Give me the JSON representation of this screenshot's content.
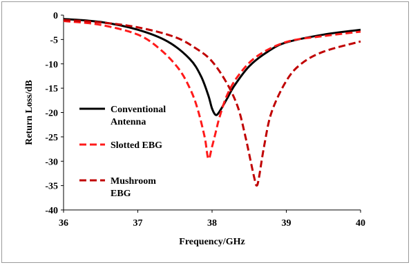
{
  "chart_data": {
    "type": "line",
    "xlabel": "Frequency/GHz",
    "ylabel": "Return Loss/dB",
    "xlim": [
      36,
      40
    ],
    "ylim": [
      -40,
      0
    ],
    "xticks": [
      "36",
      "37",
      "38",
      "39",
      "40"
    ],
    "yticks": [
      "0",
      "-5",
      "-10",
      "-15",
      "-20",
      "-25",
      "-30",
      "-35",
      "-40"
    ],
    "grid": false,
    "legend_position": "left-inside",
    "series": [
      {
        "name": "Conventional Antenna",
        "name_lines": [
          "Conventional",
          "Antenna"
        ],
        "color": "#000000",
        "style": "solid",
        "x": [
          36,
          36.5,
          37,
          37.4,
          37.7,
          37.85,
          37.95,
          38.0,
          38.05,
          38.1,
          38.2,
          38.3,
          38.5,
          38.75,
          39,
          39.5,
          40
        ],
        "y": [
          -0.8,
          -1.4,
          -3.0,
          -5.4,
          -9.0,
          -12.5,
          -16.5,
          -19.2,
          -20.5,
          -19.8,
          -17.2,
          -14.5,
          -10.5,
          -7.5,
          -5.6,
          -4.0,
          -3.0
        ]
      },
      {
        "name": "Slotted EBG",
        "name_lines": [
          "Slotted EBG"
        ],
        "color": "#ff1a1a",
        "style": "dashed",
        "x": [
          36,
          36.5,
          37,
          37.3,
          37.55,
          37.7,
          37.8,
          37.9,
          37.95,
          38.0,
          38.05,
          38.1,
          38.2,
          38.35,
          38.6,
          39,
          39.5,
          40
        ],
        "y": [
          -1.2,
          -2.0,
          -4.0,
          -7.0,
          -11.0,
          -15.0,
          -19.0,
          -25.0,
          -29.5,
          -27.0,
          -24.0,
          -21.0,
          -16.5,
          -12.5,
          -8.5,
          -5.5,
          -4.3,
          -3.4
        ]
      },
      {
        "name": "Mushroom EBG",
        "name_lines": [
          "Mushroom",
          "EBG"
        ],
        "color": "#c00000",
        "style": "dashed",
        "x": [
          36,
          36.5,
          37,
          37.5,
          37.8,
          38.0,
          38.2,
          38.35,
          38.45,
          38.52,
          38.57,
          38.6,
          38.63,
          38.7,
          38.8,
          39.0,
          39.2,
          39.5,
          40
        ],
        "y": [
          -1.0,
          -1.5,
          -2.5,
          -4.5,
          -7.0,
          -9.5,
          -14.0,
          -19.0,
          -25.0,
          -30.0,
          -33.5,
          -35.0,
          -33.5,
          -27.0,
          -20.0,
          -13.5,
          -10.0,
          -7.5,
          -5.4
        ]
      }
    ]
  }
}
